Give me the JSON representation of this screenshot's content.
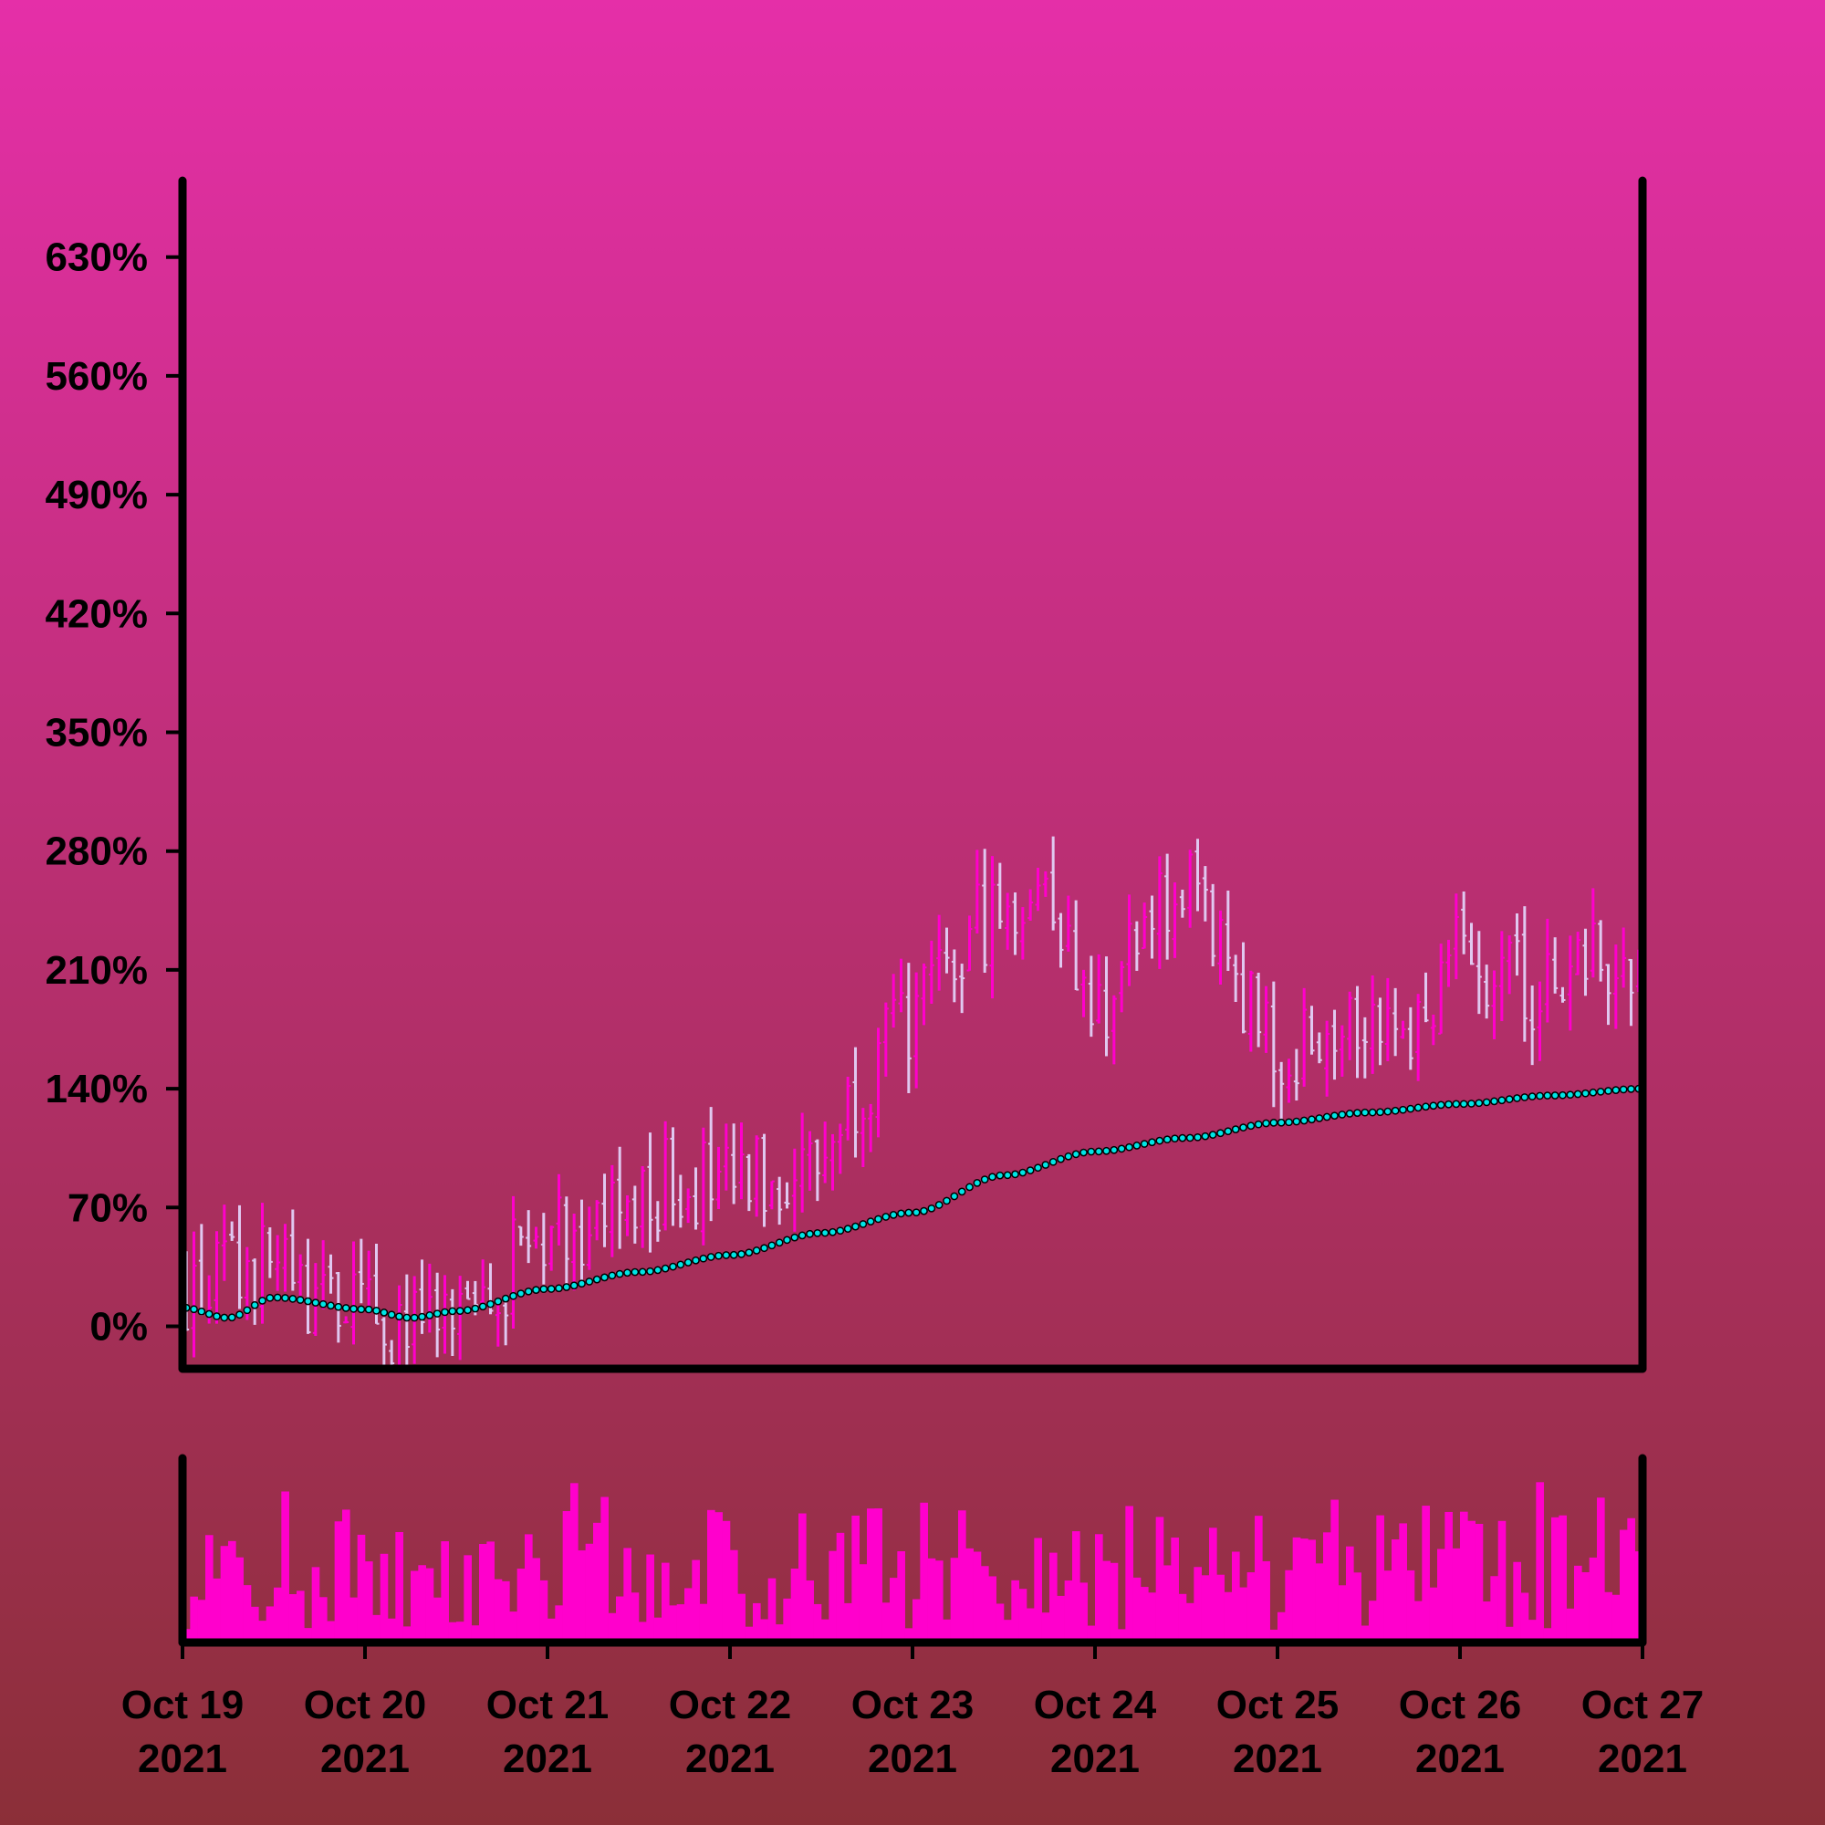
{
  "chart_data": {
    "type": "ohlc",
    "title": "",
    "xlabel": "",
    "ylabel": "",
    "x_tick_labels": [
      {
        "month_day": "Oct 19",
        "year": "2021"
      },
      {
        "month_day": "Oct 20",
        "year": "2021"
      },
      {
        "month_day": "Oct 21",
        "year": "2021"
      },
      {
        "month_day": "Oct 22",
        "year": "2021"
      },
      {
        "month_day": "Oct 23",
        "year": "2021"
      },
      {
        "month_day": "Oct 24",
        "year": "2021"
      },
      {
        "month_day": "Oct 25",
        "year": "2021"
      },
      {
        "month_day": "Oct 26",
        "year": "2021"
      },
      {
        "month_day": "Oct 27",
        "year": "2021"
      }
    ],
    "x_range": [
      "2021-10-19",
      "2021-10-27"
    ],
    "y_tick_labels": [
      "0%",
      "70%",
      "140%",
      "210%",
      "280%",
      "350%",
      "420%",
      "490%",
      "560%",
      "630%"
    ],
    "y_tick_values": [
      0,
      70,
      140,
      210,
      280,
      350,
      420,
      490,
      560,
      630
    ],
    "ylim": [
      -25,
      675
    ],
    "interval_hours": 1,
    "colors": {
      "background_top": "#e52fa8",
      "background_bottom": "#8b2f38",
      "up": "#ff00cc",
      "down": "#e0c8f0",
      "volume": "#ff00cc",
      "moving_average_fill": "#00e5e5",
      "moving_average_edge": "#000000",
      "axis": "#000000"
    },
    "ohlc_close_path_anchors": [
      [
        "2021-10-19T00:00",
        20
      ],
      [
        "2021-10-19T12:00",
        35
      ],
      [
        "2021-10-19T18:00",
        15
      ],
      [
        "2021-10-20T06:00",
        0
      ],
      [
        "2021-10-20T12:00",
        -5
      ],
      [
        "2021-10-20T18:00",
        30
      ],
      [
        "2021-10-21T00:00",
        60
      ],
      [
        "2021-10-21T12:00",
        65
      ],
      [
        "2021-10-21T18:00",
        90
      ],
      [
        "2021-10-22T00:00",
        80
      ],
      [
        "2021-10-22T12:00",
        100
      ],
      [
        "2021-10-22T18:00",
        145
      ],
      [
        "2021-10-23T00:00",
        180
      ],
      [
        "2021-10-23T12:00",
        245
      ],
      [
        "2021-10-23T18:00",
        260
      ],
      [
        "2021-10-24T00:00",
        190
      ],
      [
        "2021-10-24T12:00",
        255
      ],
      [
        "2021-10-24T18:00",
        215
      ],
      [
        "2021-10-25T00:00",
        160
      ],
      [
        "2021-10-25T12:00",
        190
      ],
      [
        "2021-10-25T18:00",
        175
      ],
      [
        "2021-10-26T00:00",
        220
      ],
      [
        "2021-10-26T12:00",
        200
      ],
      [
        "2021-10-26T18:00",
        220
      ],
      [
        "2021-10-27T00:00",
        205
      ]
    ],
    "moving_average": {
      "style": "dotted markers",
      "anchors": [
        [
          "2021-10-19T00:00",
          11
        ],
        [
          "2021-10-19T06:00",
          5
        ],
        [
          "2021-10-19T12:00",
          17
        ],
        [
          "2021-10-20T00:00",
          10
        ],
        [
          "2021-10-20T06:00",
          5
        ],
        [
          "2021-10-20T12:00",
          9
        ],
        [
          "2021-10-21T00:00",
          22
        ],
        [
          "2021-10-21T12:00",
          32
        ],
        [
          "2021-10-22T00:00",
          42
        ],
        [
          "2021-10-22T12:00",
          55
        ],
        [
          "2021-10-23T00:00",
          67
        ],
        [
          "2021-10-23T12:00",
          89
        ],
        [
          "2021-10-24T00:00",
          103
        ],
        [
          "2021-10-24T12:00",
          111
        ],
        [
          "2021-10-25T00:00",
          120
        ],
        [
          "2021-10-25T12:00",
          126
        ],
        [
          "2021-10-26T00:00",
          131
        ],
        [
          "2021-10-26T12:00",
          136
        ],
        [
          "2021-10-27T00:00",
          140
        ]
      ]
    },
    "volume": {
      "y_axis_labels": false,
      "relative_scale": [
        0,
        1
      ],
      "typical_range": [
        0.05,
        0.95
      ]
    }
  }
}
